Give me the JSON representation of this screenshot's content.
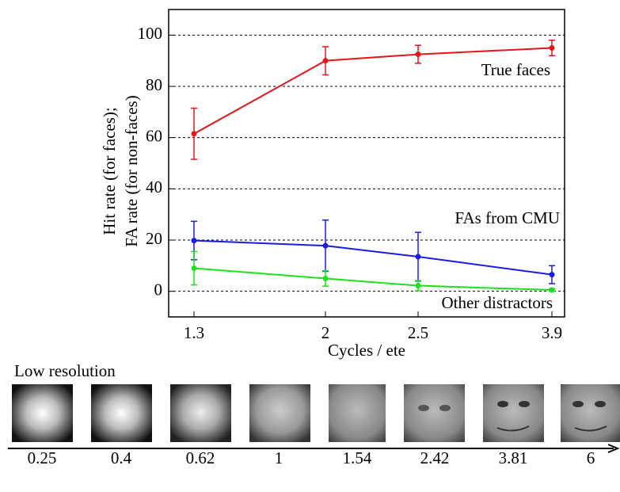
{
  "chart_data": {
    "type": "line",
    "y_label": [
      "Hit rate (for faces);",
      "FA rate (for non-faces)"
    ],
    "x_label": "Cycles / ete",
    "categories": [
      "1.3",
      "2",
      "2.5",
      "3.9"
    ],
    "ylim": [
      -10,
      110
    ],
    "yticks": [
      0,
      20,
      40,
      60,
      80,
      100
    ],
    "grid": true,
    "series": [
      {
        "name": "True faces",
        "color": "#e8141c",
        "values": [
          61.5,
          90,
          92.5,
          95
        ],
        "errors": [
          10,
          5.5,
          3.5,
          3
        ]
      },
      {
        "name": "FAs from CMU",
        "color": "#1c1ce0",
        "values": [
          19.8,
          17.8,
          13.5,
          6.5
        ],
        "errors": [
          7.5,
          10,
          9.5,
          3.5
        ]
      },
      {
        "name": "Other distractors",
        "color": "#1ee01e",
        "values": [
          9,
          5,
          2.2,
          0.5
        ],
        "errors": [
          6.5,
          3,
          2,
          0.5
        ]
      }
    ]
  },
  "resolution_strip": {
    "title": "Low resolution",
    "labels": [
      0.25,
      0.4,
      0.62,
      1,
      1.54,
      2.42,
      3.81,
      6
    ]
  }
}
